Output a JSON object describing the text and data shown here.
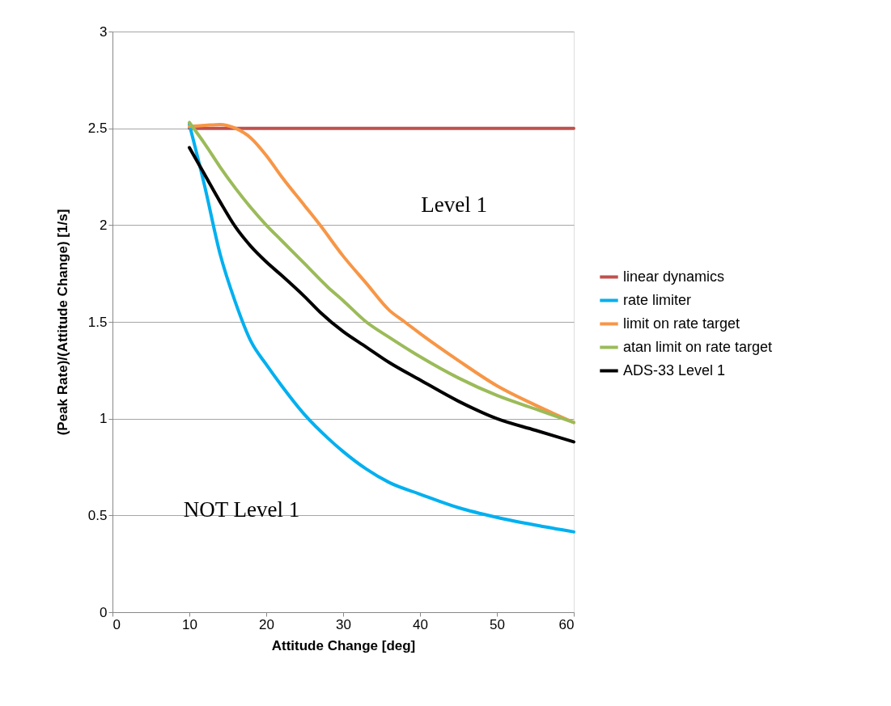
{
  "chart_data": {
    "type": "line",
    "xlabel": "Attitude Change   [deg]",
    "ylabel": "(Peak Rate)/(Attitude Change)   [1/s]",
    "xlim": [
      0,
      60
    ],
    "xticks": [
      0,
      10,
      20,
      30,
      40,
      50,
      60
    ],
    "ylim": [
      0,
      3
    ],
    "yticks": [
      0,
      0.5,
      1,
      1.5,
      2,
      2.5,
      3
    ],
    "grid": "y",
    "legend": "right",
    "marker": "none",
    "line_style": "solid",
    "annotations": [
      "Level 1",
      "NOT Level 1"
    ],
    "series": [
      {
        "name": "linear dynamics",
        "color": "#c0504d",
        "x": [
          10,
          20,
          30,
          40,
          50,
          60
        ],
        "values": [
          2.5,
          2.5,
          2.5,
          2.5,
          2.5,
          2.5
        ]
      },
      {
        "name": "rate limiter",
        "color": "#00b0f0",
        "x": [
          10,
          12,
          14,
          16,
          18,
          20,
          22,
          25,
          28,
          30,
          33,
          36,
          40,
          45,
          50,
          55,
          60
        ],
        "values": [
          2.52,
          2.2,
          1.85,
          1.6,
          1.4,
          1.28,
          1.17,
          1.02,
          0.9,
          0.83,
          0.74,
          0.67,
          0.61,
          0.54,
          0.49,
          0.45,
          0.415
        ]
      },
      {
        "name": "limit on rate target",
        "color": "#f79646",
        "x": [
          10,
          12,
          14,
          16,
          18,
          20,
          22,
          25,
          27,
          30,
          33,
          36,
          38,
          40,
          45,
          50,
          55,
          60
        ],
        "values": [
          2.51,
          2.515,
          2.52,
          2.5,
          2.45,
          2.36,
          2.25,
          2.1,
          2.0,
          1.84,
          1.7,
          1.56,
          1.5,
          1.44,
          1.3,
          1.17,
          1.07,
          0.98
        ]
      },
      {
        "name": "atan limit on rate target",
        "color": "#9bbb59",
        "x": [
          10,
          12,
          14,
          16,
          18,
          20,
          22,
          25,
          28,
          30,
          33,
          36,
          40,
          45,
          50,
          55,
          60
        ],
        "values": [
          2.53,
          2.42,
          2.3,
          2.19,
          2.09,
          2.0,
          1.92,
          1.8,
          1.68,
          1.61,
          1.5,
          1.42,
          1.32,
          1.21,
          1.12,
          1.05,
          0.98
        ]
      },
      {
        "name": "ADS-33 Level 1",
        "color": "#000000",
        "x": [
          10,
          12,
          14,
          16,
          18,
          20,
          22,
          25,
          27,
          30,
          33,
          36,
          40,
          45,
          50,
          55,
          60
        ],
        "values": [
          2.4,
          2.26,
          2.12,
          1.99,
          1.89,
          1.81,
          1.74,
          1.63,
          1.55,
          1.45,
          1.37,
          1.29,
          1.2,
          1.09,
          1.0,
          0.94,
          0.88
        ]
      }
    ]
  }
}
